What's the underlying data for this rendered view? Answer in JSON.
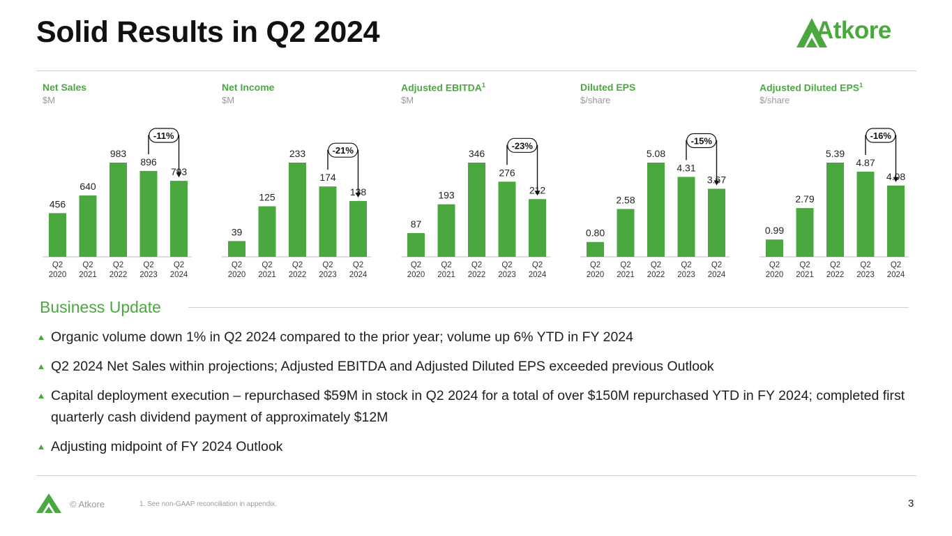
{
  "header": {
    "title": "Solid Results in Q2 2024",
    "brand": "Atkore"
  },
  "colors": {
    "accent": "#4aa83f",
    "text": "#111111",
    "muted": "#9a9a9a"
  },
  "chart_data": [
    {
      "type": "bar",
      "title": "Net Sales",
      "title_sup": "",
      "unit": "$M",
      "categories": [
        "Q2 2020",
        "Q2 2021",
        "Q2 2022",
        "Q2 2023",
        "Q2 2024"
      ],
      "values": [
        456,
        640,
        983,
        896,
        793
      ],
      "value_labels": [
        "456",
        "640",
        "983",
        "896",
        "793"
      ],
      "change_label": "-11%"
    },
    {
      "type": "bar",
      "title": "Net Income",
      "title_sup": "",
      "unit": "$M",
      "categories": [
        "Q2 2020",
        "Q2 2021",
        "Q2 2022",
        "Q2 2023",
        "Q2 2024"
      ],
      "values": [
        39,
        125,
        233,
        174,
        138
      ],
      "value_labels": [
        "39",
        "125",
        "233",
        "174",
        "138"
      ],
      "change_label": "-21%"
    },
    {
      "type": "bar",
      "title": "Adjusted EBITDA",
      "title_sup": "1",
      "unit": "$M",
      "categories": [
        "Q2 2020",
        "Q2 2021",
        "Q2 2022",
        "Q2 2023",
        "Q2 2024"
      ],
      "values": [
        87,
        193,
        346,
        276,
        212
      ],
      "value_labels": [
        "87",
        "193",
        "346",
        "276",
        "212"
      ],
      "change_label": "-23%"
    },
    {
      "type": "bar",
      "title": "Diluted EPS",
      "title_sup": "",
      "unit": "$/share",
      "categories": [
        "Q2 2020",
        "Q2 2021",
        "Q2 2022",
        "Q2 2023",
        "Q2 2024"
      ],
      "values": [
        0.8,
        2.58,
        5.08,
        4.31,
        3.67
      ],
      "value_labels": [
        "0.80",
        "2.58",
        "5.08",
        "4.31",
        "3.67"
      ],
      "change_label": "-15%"
    },
    {
      "type": "bar",
      "title": "Adjusted Diluted EPS",
      "title_sup": "1",
      "unit": "$/share",
      "categories": [
        "Q2 2020",
        "Q2 2021",
        "Q2 2022",
        "Q2 2023",
        "Q2 2024"
      ],
      "values": [
        0.99,
        2.79,
        5.39,
        4.87,
        4.08
      ],
      "value_labels": [
        "0.99",
        "2.79",
        "5.39",
        "4.87",
        "4.08"
      ],
      "change_label": "-16%"
    }
  ],
  "business_update": {
    "heading": "Business Update",
    "bullets": [
      "Organic volume down 1% in Q2 2024 compared to the prior year; volume up 6% YTD in FY 2024",
      "Q2 2024 Net Sales within projections; Adjusted EBITDA and Adjusted Diluted EPS exceeded previous Outlook",
      "Capital deployment execution – repurchased $59M in stock in Q2 2024 for a total of over $150M repurchased YTD in FY 2024; completed first quarterly cash dividend payment of approximately $12M",
      "Adjusting midpoint of FY 2024 Outlook"
    ]
  },
  "footer": {
    "copyright": "© Atkore",
    "footnote": "1.   See non-GAAP reconciliation in appendix.",
    "page_number": "3"
  }
}
